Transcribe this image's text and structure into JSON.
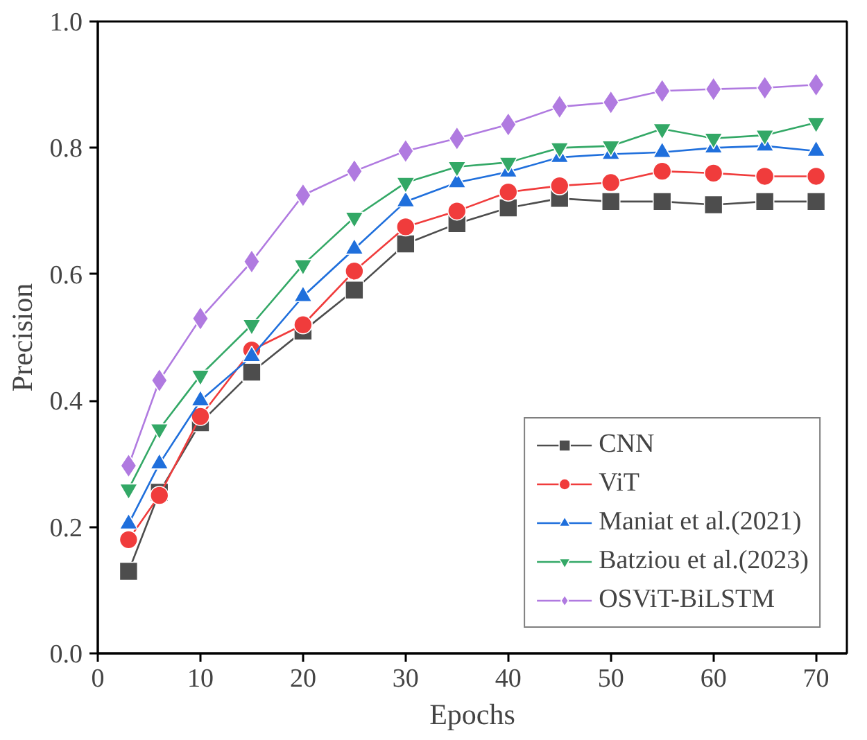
{
  "chart_data": {
    "type": "line",
    "xlabel": "Epochs",
    "ylabel": "Precision",
    "x": [
      3,
      6,
      10,
      15,
      20,
      25,
      30,
      35,
      40,
      45,
      50,
      55,
      60,
      65,
      70
    ],
    "xlim": [
      0,
      73
    ],
    "ylim": [
      0,
      1.0
    ],
    "xticks": [
      0,
      10,
      20,
      30,
      40,
      50,
      60,
      70
    ],
    "yticks": [
      {
        "value": 0,
        "label": "0.0"
      },
      0.2,
      0.4,
      0.6,
      0.8,
      {
        "value": 1.0,
        "label": "1.0"
      }
    ],
    "grid": false,
    "legend": "bottom right",
    "line_style": "solid",
    "series": [
      {
        "name": "CNN",
        "color": "#4d4d4d",
        "marker": "square",
        "values": [
          0.13,
          0.255,
          0.365,
          0.445,
          0.51,
          0.575,
          0.648,
          0.68,
          0.705,
          0.72,
          0.715,
          0.715,
          0.71,
          0.715,
          0.715
        ]
      },
      {
        "name": "ViT",
        "color": "#f03c3c",
        "marker": "circle",
        "values": [
          0.18,
          0.25,
          0.375,
          0.48,
          0.52,
          0.605,
          0.675,
          0.7,
          0.73,
          0.74,
          0.745,
          0.763,
          0.76,
          0.755,
          0.755
        ]
      },
      {
        "name": "Maniat et al.(2021)",
        "color": "#1f6fdc",
        "marker": "triangle",
        "values": [
          0.205,
          0.3,
          0.4,
          0.47,
          0.565,
          0.64,
          0.715,
          0.745,
          0.762,
          0.785,
          0.79,
          0.793,
          0.8,
          0.803,
          0.795
        ]
      },
      {
        "name": "Batziou et al.(2023)",
        "color": "#33a866",
        "marker": "triangle",
        "values": [
          0.26,
          0.355,
          0.44,
          0.52,
          0.615,
          0.69,
          0.745,
          0.77,
          0.777,
          0.8,
          0.803,
          0.83,
          0.815,
          0.82,
          0.84
        ]
      },
      {
        "name": "OSViT-BiLSTM",
        "color": "#b07ae0",
        "marker": "diamond",
        "values": [
          0.297,
          0.432,
          0.53,
          0.62,
          0.725,
          0.763,
          0.795,
          0.815,
          0.837,
          0.865,
          0.872,
          0.89,
          0.893,
          0.895,
          0.9
        ]
      }
    ]
  }
}
